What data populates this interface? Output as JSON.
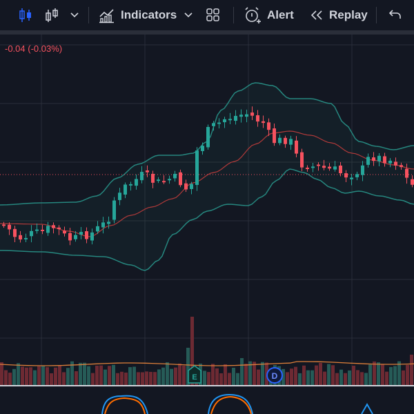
{
  "toolbar": {
    "indicators_label": "Indicators",
    "alert_label": "Alert",
    "replay_label": "Replay"
  },
  "legend": {
    "change": "-0.04 (-0.03%)"
  },
  "events": [
    {
      "letter": "E",
      "kind": "earnings"
    },
    {
      "letter": "D",
      "kind": "dividend"
    }
  ],
  "colors": {
    "background": "#131722",
    "up": "#26a69a",
    "down": "#f7525f",
    "band": "#26877f",
    "basis": "#b23a3a",
    "price_line": "#f7525f",
    "oscillator_a": "#2196f3",
    "oscillator_b": "#ff6d00"
  },
  "icons": [
    "candles-icon",
    "bar-style-icon",
    "chevron-down-icon",
    "indicators-icon",
    "layout-grid-icon",
    "alarm-clock-icon",
    "replay-icon",
    "undo-icon"
  ]
}
